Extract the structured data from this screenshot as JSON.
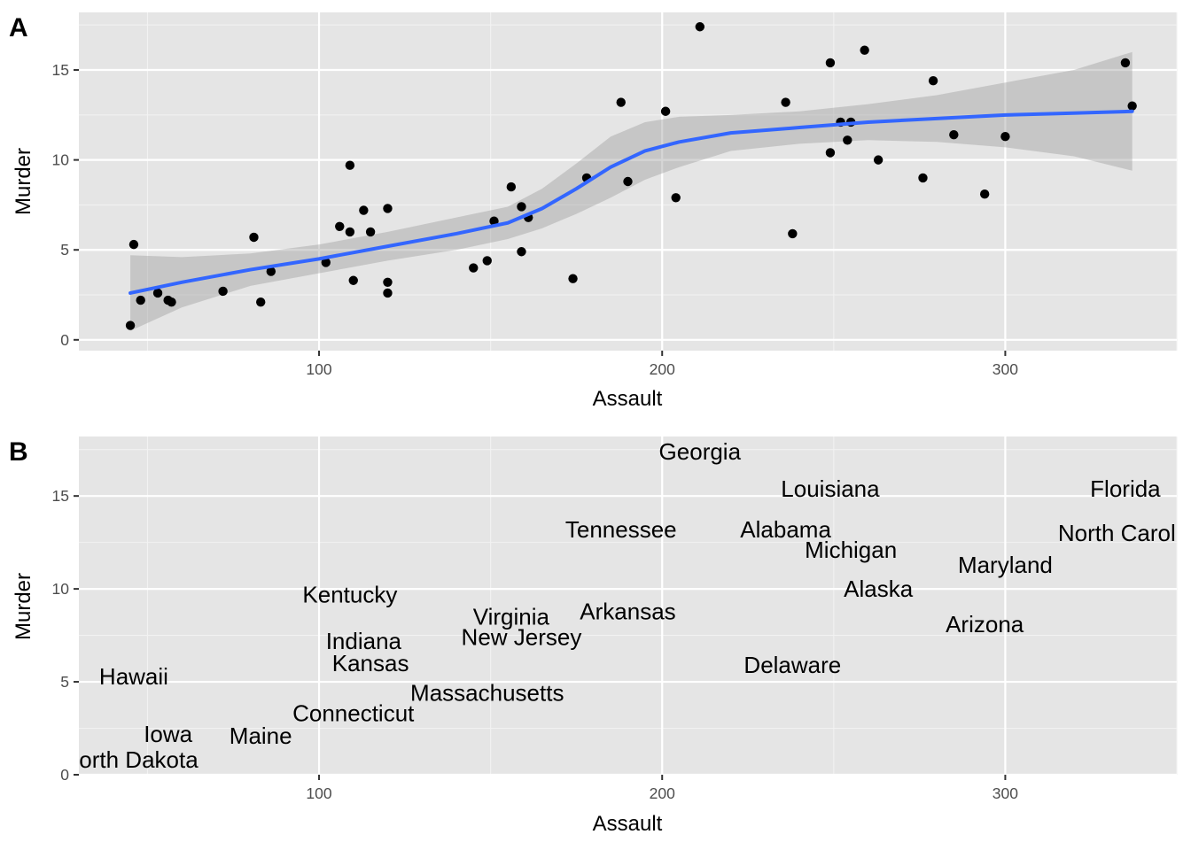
{
  "chart_data": [
    {
      "panel": "A",
      "type": "scatter",
      "xlabel": "Assault",
      "ylabel": "Murder",
      "xlim": [
        30,
        350
      ],
      "ylim": [
        -0.6,
        18.2
      ],
      "x_ticks": [
        100,
        200,
        300
      ],
      "y_ticks": [
        0,
        5,
        10,
        15
      ],
      "grid": true,
      "background": "#e5e5e5",
      "points": [
        {
          "x": 45,
          "y": 0.8
        },
        {
          "x": 46,
          "y": 5.3
        },
        {
          "x": 48,
          "y": 2.2
        },
        {
          "x": 53,
          "y": 2.6
        },
        {
          "x": 56,
          "y": 2.2
        },
        {
          "x": 57,
          "y": 2.1
        },
        {
          "x": 72,
          "y": 2.7
        },
        {
          "x": 81,
          "y": 5.7
        },
        {
          "x": 83,
          "y": 2.1
        },
        {
          "x": 86,
          "y": 3.8
        },
        {
          "x": 102,
          "y": 4.3
        },
        {
          "x": 106,
          "y": 6.3
        },
        {
          "x": 109,
          "y": 9.7
        },
        {
          "x": 109,
          "y": 6.0
        },
        {
          "x": 110,
          "y": 3.3
        },
        {
          "x": 113,
          "y": 7.2
        },
        {
          "x": 115,
          "y": 6.0
        },
        {
          "x": 120,
          "y": 7.3
        },
        {
          "x": 120,
          "y": 3.2
        },
        {
          "x": 120,
          "y": 2.6
        },
        {
          "x": 145,
          "y": 4.0
        },
        {
          "x": 149,
          "y": 4.4
        },
        {
          "x": 151,
          "y": 6.6
        },
        {
          "x": 156,
          "y": 8.5
        },
        {
          "x": 159,
          "y": 7.4
        },
        {
          "x": 159,
          "y": 4.9
        },
        {
          "x": 161,
          "y": 6.8
        },
        {
          "x": 174,
          "y": 3.4
        },
        {
          "x": 178,
          "y": 9.0
        },
        {
          "x": 188,
          "y": 13.2
        },
        {
          "x": 190,
          "y": 8.8
        },
        {
          "x": 201,
          "y": 12.7
        },
        {
          "x": 204,
          "y": 7.9
        },
        {
          "x": 211,
          "y": 17.4
        },
        {
          "x": 236,
          "y": 13.2
        },
        {
          "x": 238,
          "y": 5.9
        },
        {
          "x": 249,
          "y": 15.4
        },
        {
          "x": 249,
          "y": 10.4
        },
        {
          "x": 252,
          "y": 12.1
        },
        {
          "x": 254,
          "y": 11.1
        },
        {
          "x": 255,
          "y": 12.1
        },
        {
          "x": 259,
          "y": 16.1
        },
        {
          "x": 263,
          "y": 10.0
        },
        {
          "x": 276,
          "y": 9.0
        },
        {
          "x": 279,
          "y": 14.4
        },
        {
          "x": 285,
          "y": 11.4
        },
        {
          "x": 294,
          "y": 8.1
        },
        {
          "x": 300,
          "y": 11.3
        },
        {
          "x": 335,
          "y": 15.4
        },
        {
          "x": 337,
          "y": 13.0
        }
      ],
      "smooth": {
        "method": "loess",
        "line_color": "#3366ff",
        "ribbon_color": "#bdbdbd",
        "x": [
          45,
          60,
          80,
          100,
          120,
          140,
          155,
          165,
          175,
          185,
          195,
          205,
          220,
          240,
          260,
          280,
          300,
          320,
          337
        ],
        "y": [
          2.6,
          3.2,
          3.9,
          4.5,
          5.2,
          5.9,
          6.5,
          7.3,
          8.4,
          9.6,
          10.5,
          11.0,
          11.5,
          11.8,
          12.1,
          12.3,
          12.5,
          12.6,
          12.7
        ],
        "lower": [
          0.5,
          1.8,
          3.0,
          3.7,
          4.4,
          5.0,
          5.6,
          6.2,
          7.0,
          7.9,
          8.9,
          9.6,
          10.5,
          10.9,
          11.1,
          11.0,
          10.7,
          10.2,
          9.4
        ],
        "upper": [
          4.7,
          4.6,
          4.8,
          5.3,
          6.0,
          6.8,
          7.4,
          8.4,
          9.8,
          11.3,
          12.1,
          12.4,
          12.5,
          12.7,
          13.1,
          13.6,
          14.3,
          15.0,
          16.0
        ]
      }
    },
    {
      "panel": "B",
      "type": "scatter",
      "marker": "text",
      "xlabel": "Assault",
      "ylabel": "Murder",
      "xlim": [
        30,
        350
      ],
      "ylim": [
        0,
        18.2
      ],
      "x_ticks": [
        100,
        200,
        300
      ],
      "y_ticks": [
        0,
        5,
        10,
        15
      ],
      "grid": true,
      "background": "#e5e5e5",
      "labels": [
        {
          "text": "Georgia",
          "x": 211,
          "y": 17.4
        },
        {
          "text": "Louisiana",
          "x": 249,
          "y": 15.4
        },
        {
          "text": "Florida",
          "x": 335,
          "y": 15.4
        },
        {
          "text": "Tennessee",
          "x": 188,
          "y": 13.2
        },
        {
          "text": "Alabama",
          "x": 236,
          "y": 13.2
        },
        {
          "text": "North Carolina",
          "x": 337,
          "y": 13.0
        },
        {
          "text": "Michigan",
          "x": 255,
          "y": 12.1
        },
        {
          "text": "Maryland",
          "x": 300,
          "y": 11.3
        },
        {
          "text": "Alaska",
          "x": 263,
          "y": 10.0
        },
        {
          "text": "Kentucky",
          "x": 109,
          "y": 9.7
        },
        {
          "text": "Arkansas",
          "x": 190,
          "y": 8.8
        },
        {
          "text": "Virginia",
          "x": 156,
          "y": 8.5
        },
        {
          "text": "Arizona",
          "x": 294,
          "y": 8.1
        },
        {
          "text": "New Jersey",
          "x": 159,
          "y": 7.4
        },
        {
          "text": "Indiana",
          "x": 113,
          "y": 7.2
        },
        {
          "text": "Kansas",
          "x": 115,
          "y": 6.0
        },
        {
          "text": "Delaware",
          "x": 238,
          "y": 5.9
        },
        {
          "text": "Hawaii",
          "x": 46,
          "y": 5.3
        },
        {
          "text": "Massachusetts",
          "x": 149,
          "y": 4.4
        },
        {
          "text": "Connecticut",
          "x": 110,
          "y": 3.3
        },
        {
          "text": "Iowa",
          "x": 56,
          "y": 2.2
        },
        {
          "text": "Maine",
          "x": 83,
          "y": 2.1
        },
        {
          "text": "North Dakota",
          "x": 45,
          "y": 0.8
        }
      ]
    }
  ],
  "panels": {
    "a": {
      "tag": "A",
      "xlabel": "Assault",
      "ylabel": "Murder"
    },
    "b": {
      "tag": "B",
      "xlabel": "Assault",
      "ylabel": "Murder"
    }
  }
}
